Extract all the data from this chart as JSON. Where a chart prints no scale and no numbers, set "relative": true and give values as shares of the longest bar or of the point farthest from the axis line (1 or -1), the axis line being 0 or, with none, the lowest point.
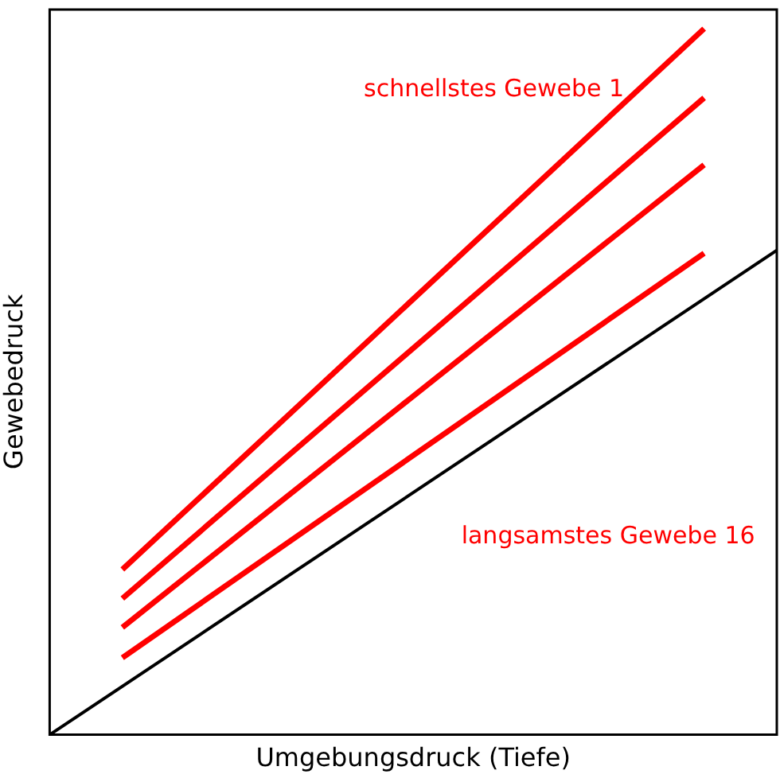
{
  "chart_data": {
    "type": "line",
    "relative": true,
    "xlabel": "Umgebungsdruck (Tiefe)",
    "ylabel": "Gewebedruck",
    "categories": [
      null,
      null,
      null,
      null,
      null,
      null,
      null,
      null,
      null,
      null,
      null
    ],
    "series": [
      {
        "color": "#ff0000",
        "values": [
          null,
          0.234,
          null,
          null,
          null,
          null,
          null,
          null,
          null,
          1.0,
          null
        ]
      },
      {
        "color": "#ff0000",
        "values": [
          null,
          0.193,
          null,
          null,
          null,
          null,
          null,
          null,
          null,
          0.902,
          null
        ]
      },
      {
        "color": "#ff0000",
        "values": [
          null,
          0.152,
          null,
          null,
          null,
          null,
          null,
          null,
          null,
          0.807,
          null
        ]
      },
      {
        "color": "#ff0000",
        "values": [
          null,
          0.109,
          null,
          null,
          null,
          null,
          null,
          null,
          null,
          0.682,
          null
        ]
      },
      {
        "color": "#000000",
        "values": [
          0,
          null,
          null,
          null,
          null,
          null,
          null,
          null,
          null,
          null,
          0.686
        ]
      }
    ],
    "annotations": [
      "schnellstes Gewebe 1",
      "langsamstes Gewebe 16"
    ],
    "grid": false,
    "legend": false,
    "marker": "none",
    "line_style": "solid"
  }
}
